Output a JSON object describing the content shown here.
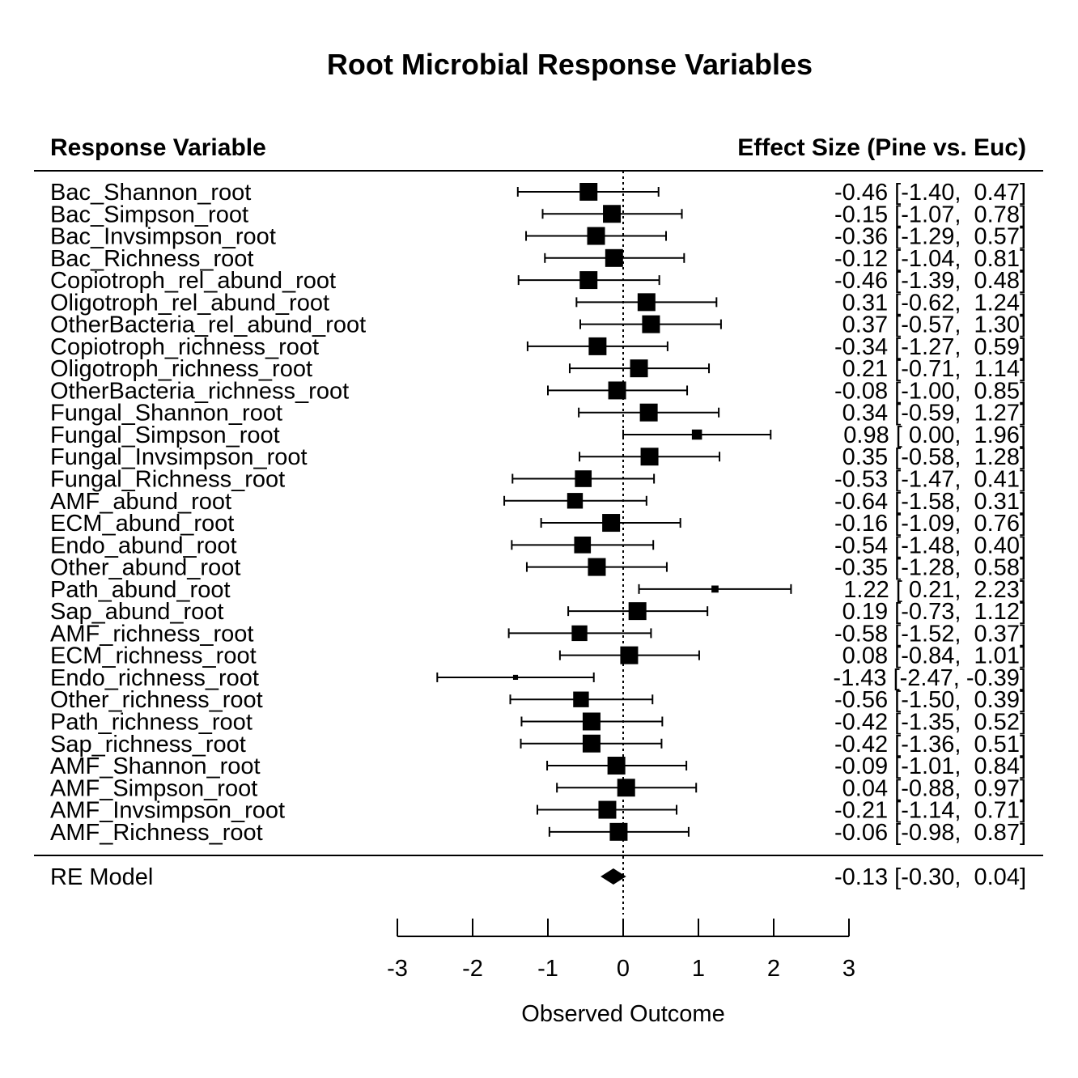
{
  "chart_data": {
    "type": "forest",
    "title": "Root Microbial Response Variables",
    "headers": {
      "left": "Response Variable",
      "right": "Effect Size (Pine vs. Euc)"
    },
    "xlabel": "Observed Outcome",
    "xlim": [
      -3,
      3
    ],
    "xticks": [
      -3,
      -2,
      -1,
      0,
      1,
      2,
      3
    ],
    "reference_line": 0,
    "rows": [
      {
        "label": "Bac_Shannon_root",
        "est": -0.46,
        "lo": -1.4,
        "hi": 0.47,
        "text": "-0.46 [-1.40,  0.47]"
      },
      {
        "label": "Bac_Simpson_root",
        "est": -0.15,
        "lo": -1.07,
        "hi": 0.78,
        "text": "-0.15 [-1.07,  0.78]"
      },
      {
        "label": "Bac_Invsimpson_root",
        "est": -0.36,
        "lo": -1.29,
        "hi": 0.57,
        "text": "-0.36 [-1.29,  0.57]"
      },
      {
        "label": "Bac_Richness_root",
        "est": -0.12,
        "lo": -1.04,
        "hi": 0.81,
        "text": "-0.12 [-1.04,  0.81]"
      },
      {
        "label": "Copiotroph_rel_abund_root",
        "est": -0.46,
        "lo": -1.39,
        "hi": 0.48,
        "text": "-0.46 [-1.39,  0.48]"
      },
      {
        "label": "Oligotroph_rel_abund_root",
        "est": 0.31,
        "lo": -0.62,
        "hi": 1.24,
        "text": "0.31 [-0.62,  1.24]"
      },
      {
        "label": "OtherBacteria_rel_abund_root",
        "est": 0.37,
        "lo": -0.57,
        "hi": 1.3,
        "text": "0.37 [-0.57,  1.30]"
      },
      {
        "label": "Copiotroph_richness_root",
        "est": -0.34,
        "lo": -1.27,
        "hi": 0.59,
        "text": "-0.34 [-1.27,  0.59]"
      },
      {
        "label": "Oligotroph_richness_root",
        "est": 0.21,
        "lo": -0.71,
        "hi": 1.14,
        "text": "0.21 [-0.71,  1.14]"
      },
      {
        "label": "OtherBacteria_richness_root",
        "est": -0.08,
        "lo": -1.0,
        "hi": 0.85,
        "text": "-0.08 [-1.00,  0.85]"
      },
      {
        "label": "Fungal_Shannon_root",
        "est": 0.34,
        "lo": -0.59,
        "hi": 1.27,
        "text": "0.34 [-0.59,  1.27]"
      },
      {
        "label": "Fungal_Simpson_root",
        "est": 0.98,
        "lo": 0.0,
        "hi": 1.96,
        "text": "0.98 [ 0.00,  1.96]"
      },
      {
        "label": "Fungal_Invsimpson_root",
        "est": 0.35,
        "lo": -0.58,
        "hi": 1.28,
        "text": "0.35 [-0.58,  1.28]"
      },
      {
        "label": "Fungal_Richness_root",
        "est": -0.53,
        "lo": -1.47,
        "hi": 0.41,
        "text": "-0.53 [-1.47,  0.41]"
      },
      {
        "label": "AMF_abund_root",
        "est": -0.64,
        "lo": -1.58,
        "hi": 0.31,
        "text": "-0.64 [-1.58,  0.31]"
      },
      {
        "label": "ECM_abund_root",
        "est": -0.16,
        "lo": -1.09,
        "hi": 0.76,
        "text": "-0.16 [-1.09,  0.76]"
      },
      {
        "label": "Endo_abund_root",
        "est": -0.54,
        "lo": -1.48,
        "hi": 0.4,
        "text": "-0.54 [-1.48,  0.40]"
      },
      {
        "label": "Other_abund_root",
        "est": -0.35,
        "lo": -1.28,
        "hi": 0.58,
        "text": "-0.35 [-1.28,  0.58]"
      },
      {
        "label": "Path_abund_root",
        "est": 1.22,
        "lo": 0.21,
        "hi": 2.23,
        "text": "1.22 [ 0.21,  2.23]"
      },
      {
        "label": "Sap_abund_root",
        "est": 0.19,
        "lo": -0.73,
        "hi": 1.12,
        "text": "0.19 [-0.73,  1.12]"
      },
      {
        "label": "AMF_richness_root",
        "est": -0.58,
        "lo": -1.52,
        "hi": 0.37,
        "text": "-0.58 [-1.52,  0.37]"
      },
      {
        "label": "ECM_richness_root",
        "est": 0.08,
        "lo": -0.84,
        "hi": 1.01,
        "text": "0.08 [-0.84,  1.01]"
      },
      {
        "label": "Endo_richness_root",
        "est": -1.43,
        "lo": -2.47,
        "hi": -0.39,
        "text": "-1.43 [-2.47, -0.39]"
      },
      {
        "label": "Other_richness_root",
        "est": -0.56,
        "lo": -1.5,
        "hi": 0.39,
        "text": "-0.56 [-1.50,  0.39]"
      },
      {
        "label": "Path_richness_root",
        "est": -0.42,
        "lo": -1.35,
        "hi": 0.52,
        "text": "-0.42 [-1.35,  0.52]"
      },
      {
        "label": "Sap_richness_root",
        "est": -0.42,
        "lo": -1.36,
        "hi": 0.51,
        "text": "-0.42 [-1.36,  0.51]"
      },
      {
        "label": "AMF_Shannon_root",
        "est": -0.09,
        "lo": -1.01,
        "hi": 0.84,
        "text": "-0.09 [-1.01,  0.84]"
      },
      {
        "label": "AMF_Simpson_root",
        "est": 0.04,
        "lo": -0.88,
        "hi": 0.97,
        "text": "0.04 [-0.88,  0.97]"
      },
      {
        "label": "AMF_Invsimpson_root",
        "est": -0.21,
        "lo": -1.14,
        "hi": 0.71,
        "text": "-0.21 [-1.14,  0.71]"
      },
      {
        "label": "AMF_Richness_root",
        "est": -0.06,
        "lo": -0.98,
        "hi": 0.87,
        "text": "-0.06 [-0.98,  0.87]"
      }
    ],
    "summary": {
      "label": "RE Model",
      "est": -0.13,
      "lo": -0.3,
      "hi": 0.04,
      "text": "-0.13 [-0.30,  0.04]"
    }
  }
}
